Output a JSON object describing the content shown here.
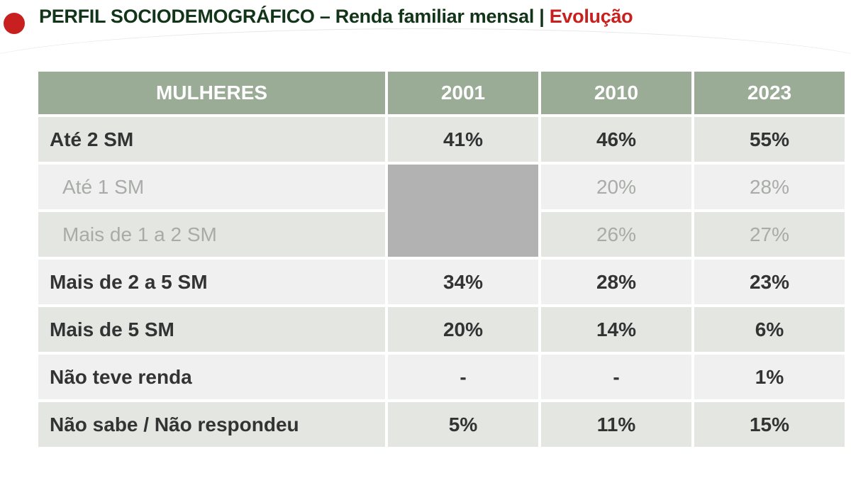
{
  "header": {
    "title_main": "PERFIL SOCIODEMOGRÁFICO – Renda familiar mensal |",
    "title_accent": "Evolução"
  },
  "table": {
    "columns": [
      "MULHERES",
      "2001",
      "2010",
      "2023"
    ],
    "rows": [
      {
        "label": "Até 2 SM",
        "values": [
          "41%",
          "46%",
          "55%"
        ]
      },
      {
        "label": "Até 1 SM",
        "values": [
          "",
          "20%",
          "28%"
        ]
      },
      {
        "label": "Mais de 1 a 2 SM",
        "values": [
          "",
          "26%",
          "27%"
        ]
      },
      {
        "label": "Mais de 2 a 5 SM",
        "values": [
          "34%",
          "28%",
          "23%"
        ]
      },
      {
        "label": "Mais de 5 SM",
        "values": [
          "20%",
          "14%",
          "6%"
        ]
      },
      {
        "label": "Não teve renda",
        "values": [
          "-",
          "-",
          "1%"
        ]
      },
      {
        "label": "Não sabe / Não respondeu",
        "values": [
          "5%",
          "11%",
          "15%"
        ]
      }
    ]
  },
  "colors": {
    "accent": "#c8201e",
    "title": "#12351a",
    "header_bg": "#9aab96",
    "blank_cell": "#b2b2b2"
  }
}
